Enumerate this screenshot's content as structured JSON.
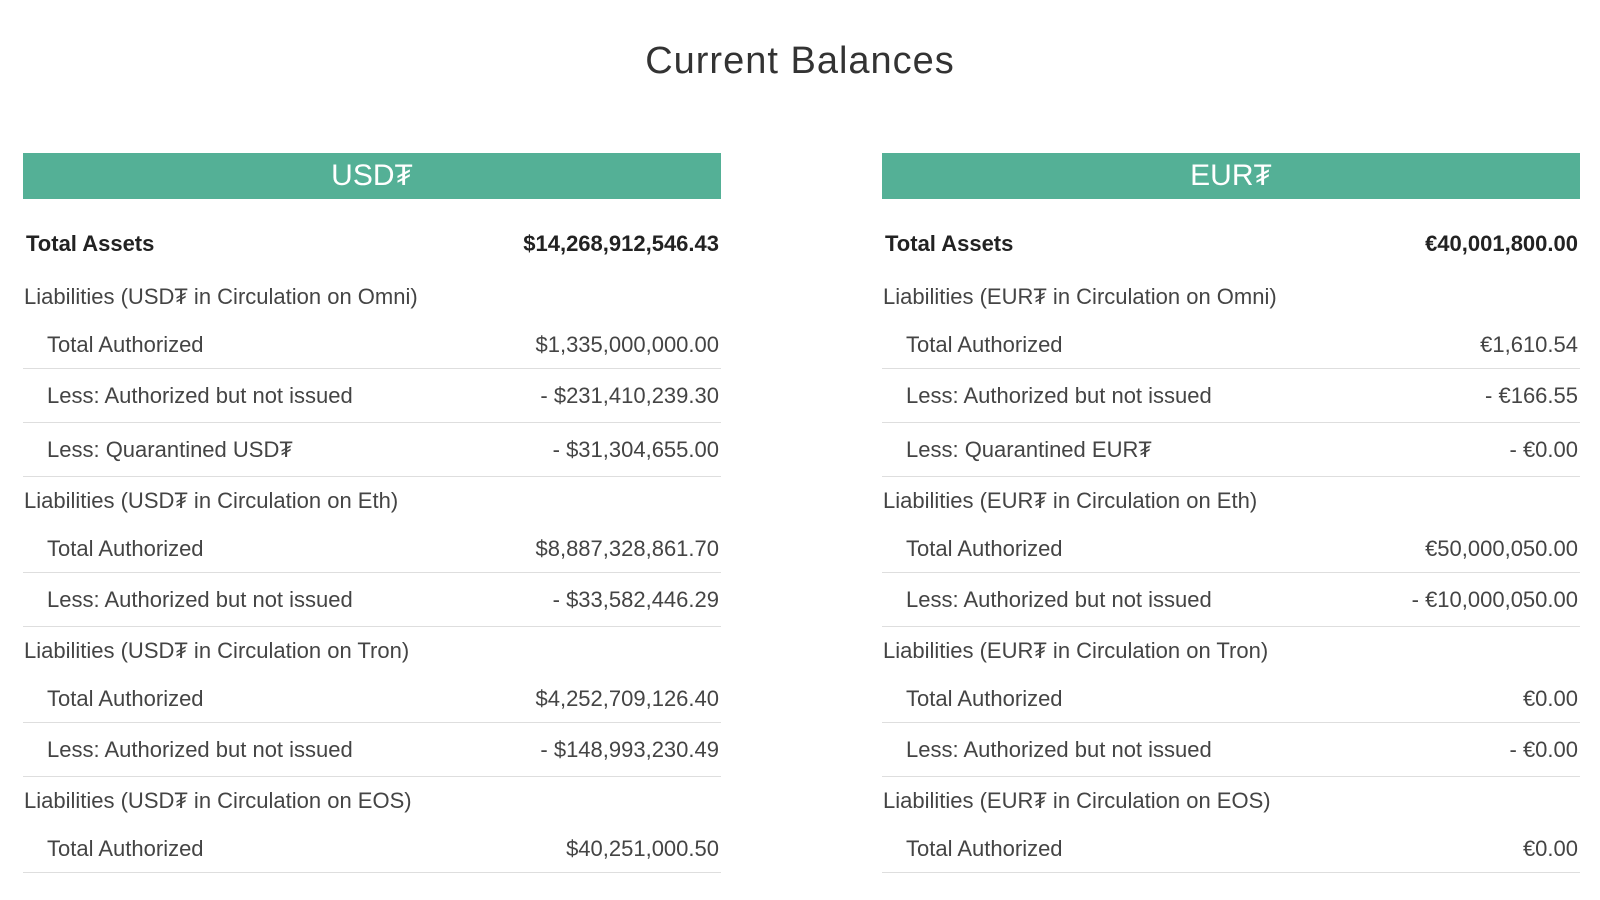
{
  "page": {
    "title": "Current Balances"
  },
  "theme": {
    "header_color": "#54b096",
    "divider_color": "#dedede",
    "text_color": "#444444"
  },
  "usdt": {
    "header": "USD₮",
    "total_assets_label": "Total Assets",
    "total_assets_value": "$14,268,912,546.43",
    "sections": [
      {
        "title": "Liabilities (USD₮ in Circulation on Omni)",
        "items": [
          {
            "label": "Total Authorized",
            "value": "$1,335,000,000.00"
          },
          {
            "label": "Less: Authorized but not issued",
            "value": "- $231,410,239.30"
          },
          {
            "label": "Less: Quarantined USD₮",
            "value": "- $31,304,655.00"
          }
        ]
      },
      {
        "title": "Liabilities (USD₮ in Circulation on Eth)",
        "items": [
          {
            "label": "Total Authorized",
            "value": "$8,887,328,861.70"
          },
          {
            "label": "Less: Authorized but not issued",
            "value": "- $33,582,446.29"
          }
        ]
      },
      {
        "title": "Liabilities (USD₮ in Circulation on Tron)",
        "items": [
          {
            "label": "Total Authorized",
            "value": "$4,252,709,126.40"
          },
          {
            "label": "Less: Authorized but not issued",
            "value": "- $148,993,230.49"
          }
        ]
      },
      {
        "title": "Liabilities (USD₮ in Circulation on EOS)",
        "items": [
          {
            "label": "Total Authorized",
            "value": "$40,251,000.50"
          }
        ]
      }
    ]
  },
  "eurt": {
    "header": "EUR₮",
    "total_assets_label": "Total Assets",
    "total_assets_value": "€40,001,800.00",
    "sections": [
      {
        "title": "Liabilities (EUR₮ in Circulation on Omni)",
        "items": [
          {
            "label": "Total Authorized",
            "value": "€1,610.54"
          },
          {
            "label": "Less: Authorized but not issued",
            "value": "- €166.55"
          },
          {
            "label": "Less: Quarantined EUR₮",
            "value": "- €0.00"
          }
        ]
      },
      {
        "title": "Liabilities (EUR₮ in Circulation on Eth)",
        "items": [
          {
            "label": "Total Authorized",
            "value": "€50,000,050.00"
          },
          {
            "label": "Less: Authorized but not issued",
            "value": "- €10,000,050.00"
          }
        ]
      },
      {
        "title": "Liabilities (EUR₮ in Circulation on Tron)",
        "items": [
          {
            "label": "Total Authorized",
            "value": "€0.00"
          },
          {
            "label": "Less: Authorized but not issued",
            "value": "- €0.00"
          }
        ]
      },
      {
        "title": "Liabilities (EUR₮ in Circulation on EOS)",
        "items": [
          {
            "label": "Total Authorized",
            "value": "€0.00"
          }
        ]
      }
    ]
  }
}
